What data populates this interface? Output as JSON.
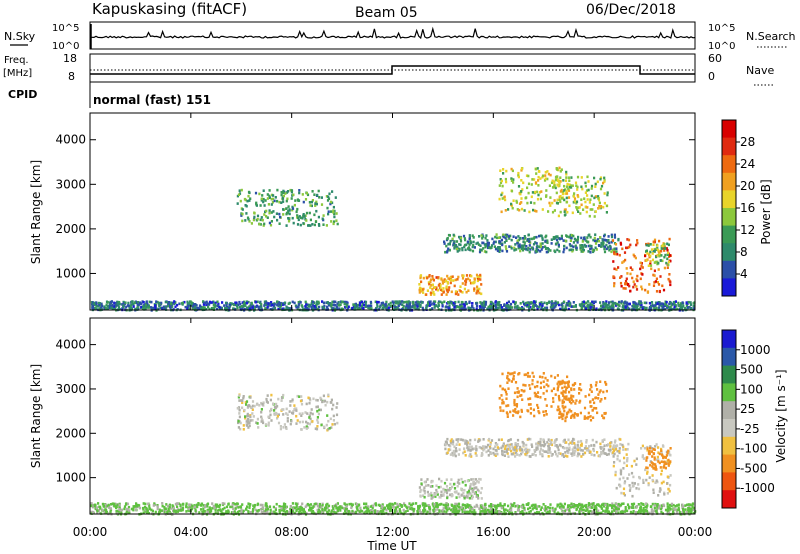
{
  "header": {
    "station": "Kapuskasing (fitACF)",
    "beam": "Beam 05",
    "date": "06/Dec/2018"
  },
  "nsky_panel": {
    "left_label": "N.Sky",
    "right_label": "N.Search",
    "left_ticks": [
      "10^5",
      "10^0"
    ],
    "right_ticks": [
      "10^5",
      "10^0"
    ]
  },
  "freq_panel": {
    "left_label_1": "Freq.",
    "left_label_2": "[MHz]",
    "left_ticks": [
      "18",
      "8"
    ],
    "right_label": "Nave",
    "right_ticks": [
      "60",
      "0"
    ]
  },
  "cpid": {
    "label": "CPID",
    "value": "normal (fast) 151"
  },
  "colors": {
    "power": [
      "#1a1ad8",
      "#2b4fa8",
      "#2e8a6b",
      "#3a9a55",
      "#8cc83c",
      "#e8d42a",
      "#f0a020",
      "#ee6a10",
      "#e02a10",
      "#d80000"
    ],
    "velocity": [
      "#e01010",
      "#ee5510",
      "#f09020",
      "#f0c040",
      "#c8c8c0",
      "#b0b0a8",
      "#5fc040",
      "#2e8a4b",
      "#2a58a8",
      "#1a1ad0"
    ]
  },
  "chart_data": [
    {
      "type": "heatmap",
      "panel": "power",
      "xlabel": "",
      "ylabel": "Slant Range [km]",
      "xlim_hours": [
        0,
        24
      ],
      "ylim": [
        180,
        4600
      ],
      "y_ticks": [
        "4000",
        "3000",
        "2000",
        "1000"
      ],
      "colorbar_label": "Power [dB]",
      "colorbar_ticks": [
        "28",
        "24",
        "20",
        "16",
        "12",
        "8",
        "4"
      ],
      "colorbar_range": [
        0,
        32
      ],
      "regions": [
        {
          "t": [
            0.0,
            24.0
          ],
          "r": [
            200,
            400
          ],
          "value": 7
        },
        {
          "t": [
            5.8,
            9.8
          ],
          "r": [
            2100,
            2900
          ],
          "value": 11
        },
        {
          "t": [
            13.0,
            15.5
          ],
          "r": [
            550,
            1000
          ],
          "value": 21
        },
        {
          "t": [
            14.0,
            21.0
          ],
          "r": [
            1500,
            1900
          ],
          "value": 9
        },
        {
          "t": [
            16.2,
            19.0
          ],
          "r": [
            2400,
            3400
          ],
          "value": 16
        },
        {
          "t": [
            18.5,
            20.5
          ],
          "r": [
            2300,
            3200
          ],
          "value": 15
        },
        {
          "t": [
            20.7,
            23.0
          ],
          "r": [
            600,
            1800
          ],
          "value": 25
        },
        {
          "t": [
            22.0,
            23.0
          ],
          "r": [
            1200,
            1700
          ],
          "value": 14
        }
      ]
    },
    {
      "type": "heatmap",
      "panel": "velocity",
      "xlabel": "Time UT",
      "ylabel": "Slant Range [km]",
      "xlim_hours": [
        0,
        24
      ],
      "ylim": [
        180,
        4600
      ],
      "x_ticks": [
        "00:00",
        "04:00",
        "08:00",
        "12:00",
        "16:00",
        "20:00",
        "00:00"
      ],
      "y_ticks": [
        "4000",
        "3000",
        "2000",
        "1000"
      ],
      "colorbar_label": "Velocity [m s⁻¹]",
      "colorbar_ticks": [
        "1000",
        "500",
        "100",
        "25",
        "-25",
        "-100",
        "-500",
        "-1000"
      ],
      "regions": [
        {
          "t": [
            0.0,
            24.0
          ],
          "r": [
            200,
            450
          ],
          "value": 40
        },
        {
          "t": [
            5.8,
            9.8
          ],
          "r": [
            2100,
            2900
          ],
          "value": 0
        },
        {
          "t": [
            13.0,
            15.5
          ],
          "r": [
            550,
            1000
          ],
          "value": 5
        },
        {
          "t": [
            14.0,
            21.0
          ],
          "r": [
            1500,
            1900
          ],
          "value": -5
        },
        {
          "t": [
            16.2,
            19.0
          ],
          "r": [
            2400,
            3400
          ],
          "value": -300
        },
        {
          "t": [
            18.5,
            20.5
          ],
          "r": [
            2300,
            3200
          ],
          "value": -400
        },
        {
          "t": [
            20.7,
            23.0
          ],
          "r": [
            600,
            1800
          ],
          "value": -10
        },
        {
          "t": [
            22.0,
            23.0
          ],
          "r": [
            1200,
            1700
          ],
          "value": -150
        }
      ]
    }
  ]
}
